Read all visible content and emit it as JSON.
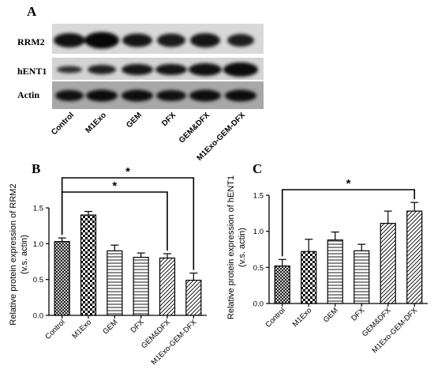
{
  "panels": {
    "a": "A",
    "b": "B",
    "c": "C"
  },
  "blot": {
    "row_labels": [
      "RRM2",
      "hENT1",
      "Actin"
    ],
    "lanes": [
      "Control",
      "M1Exo",
      "GEM",
      "DFX",
      "GEM&DFX",
      "M1Exo-GEM-DFX"
    ]
  },
  "chart_data": [
    {
      "type": "bar",
      "panel": "B",
      "title": "",
      "xlabel": "",
      "ylabel": "Relative protein expression of RRM2 (v.s. actin)",
      "ylabel_lines": [
        "Relative protein expression of RRM2",
        "(v.s. actin)"
      ],
      "categories": [
        "Control",
        "M1Exo",
        "GEM",
        "DFX",
        "GEM&DFX",
        "M1Exo-GEM-DFX"
      ],
      "values": [
        1.03,
        1.4,
        0.9,
        0.81,
        0.8,
        0.49
      ],
      "errors": [
        0.05,
        0.05,
        0.08,
        0.06,
        0.06,
        0.1
      ],
      "patterns": [
        "crosshatch",
        "checker",
        "horizontal-lines",
        "horizontal-lines",
        "diagonal-lines",
        "diagonal-lines"
      ],
      "ylim": [
        0,
        1.5
      ],
      "yticks": [
        "0.0",
        "0.5",
        "1.0",
        "1.5"
      ],
      "significance": [
        {
          "from": "Control",
          "to": "GEM&DFX",
          "label": "*"
        },
        {
          "from": "Control",
          "to": "M1Exo-GEM-DFX",
          "label": "*"
        }
      ]
    },
    {
      "type": "bar",
      "panel": "C",
      "title": "",
      "xlabel": "",
      "ylabel": "Relative protein expression of hENT1 (v.s. actin)",
      "ylabel_lines": [
        "Relative protein expression of hENT1",
        "(v.s. actin)"
      ],
      "categories": [
        "Control",
        "M1Exo",
        "GEM",
        "DFX",
        "GEM&DFX",
        "M1Exo-GEM-DFX"
      ],
      "values": [
        0.52,
        0.72,
        0.88,
        0.73,
        1.11,
        1.28
      ],
      "errors": [
        0.09,
        0.17,
        0.11,
        0.09,
        0.17,
        0.12
      ],
      "patterns": [
        "crosshatch",
        "checker",
        "horizontal-lines",
        "horizontal-lines",
        "diagonal-lines",
        "diagonal-lines"
      ],
      "ylim": [
        0,
        1.5
      ],
      "yticks": [
        "0.0",
        "0.5",
        "1.0",
        "1.5"
      ],
      "significance": [
        {
          "from": "Control",
          "to": "M1Exo-GEM-DFX",
          "label": "*"
        }
      ]
    }
  ]
}
